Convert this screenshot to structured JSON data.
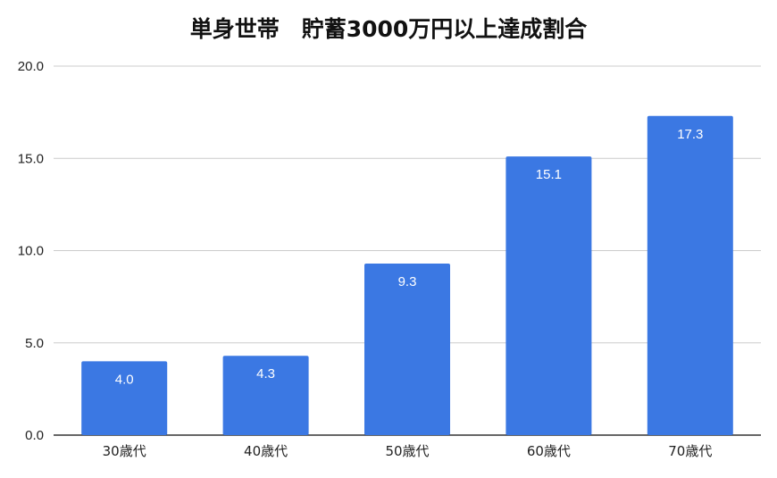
{
  "chart_data": {
    "type": "bar",
    "title": "単身世帯　貯蓄3000万円以上達成割合",
    "categories": [
      "30歳代",
      "40歳代",
      "50歳代",
      "60歳代",
      "70歳代"
    ],
    "values": [
      4.0,
      4.3,
      9.3,
      15.1,
      17.3
    ],
    "data_labels": [
      "4.0",
      "4.3",
      "9.3",
      "15.1",
      "17.3"
    ],
    "yticks": [
      "0.0",
      "5.0",
      "10.0",
      "15.0",
      "20.0"
    ],
    "ylim": [
      0,
      20
    ],
    "xlabel": "",
    "ylabel": "",
    "grid": true,
    "bar_color": "#3b78e3"
  }
}
